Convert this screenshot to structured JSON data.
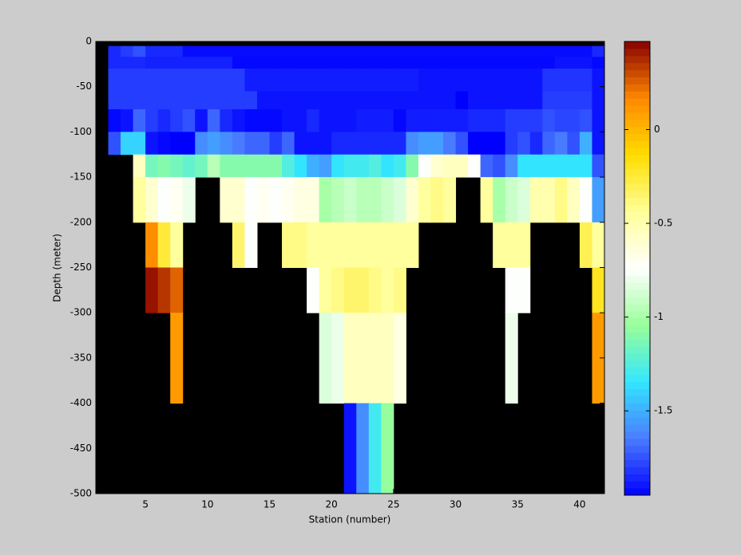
{
  "chart_data": {
    "type": "heatmap",
    "x_label": "Station (number)",
    "y_label": "Depth (meter)",
    "xlim": [
      1,
      42
    ],
    "ylim": [
      -500,
      0
    ],
    "xticks": [
      5,
      10,
      15,
      20,
      25,
      30,
      35,
      40
    ],
    "yticks": [
      0,
      -50,
      -100,
      -150,
      -200,
      -250,
      -300,
      -350,
      -400,
      -450,
      -500
    ],
    "clim": [
      -1.95,
      0.47
    ],
    "cticks": [
      0,
      -0.5,
      -1,
      -1.5
    ],
    "colormap": [
      "#0000ff",
      "#4a7cff",
      "#33e6ff",
      "#99ff99",
      "#ffffff",
      "#ffff99",
      "#ffdd00",
      "#ff8800",
      "#880000"
    ],
    "missing_color": "#000000",
    "x": [
      2,
      3,
      4,
      5,
      6,
      7,
      8,
      9,
      10,
      11,
      12,
      13,
      14,
      15,
      16,
      17,
      18,
      19,
      20,
      21,
      22,
      23,
      24,
      25,
      26,
      27,
      28,
      29,
      30,
      31,
      32,
      33,
      34,
      35,
      36,
      37,
      38,
      39,
      40,
      41,
      42
    ],
    "y": [
      -5,
      -17,
      -30,
      -55,
      -75,
      -100,
      -125,
      -150,
      -200,
      -250,
      -300,
      -400,
      -500
    ],
    "values": [
      [
        -1.85,
        -1.8,
        -1.75,
        -1.85,
        -1.85,
        -1.85,
        -1.92,
        -1.92,
        -1.92,
        -1.92,
        -1.92,
        -1.92,
        -1.92,
        -1.92,
        -1.92,
        -1.92,
        -1.92,
        -1.92,
        -1.92,
        -1.92,
        -1.92,
        -1.92,
        -1.92,
        -1.92,
        -1.92,
        -1.92,
        -1.92,
        -1.92,
        -1.92,
        -1.92,
        -1.92,
        -1.92,
        -1.92,
        -1.92,
        -1.92,
        -1.92,
        -1.92,
        -1.92,
        -1.92,
        -1.85
      ],
      [
        -1.85,
        -1.85,
        -1.85,
        -1.87,
        -1.87,
        -1.87,
        -1.87,
        -1.87,
        -1.87,
        -1.87,
        -1.93,
        -1.93,
        -1.93,
        -1.93,
        -1.93,
        -1.93,
        -1.93,
        -1.93,
        -1.93,
        -1.93,
        -1.93,
        -1.93,
        -1.93,
        -1.93,
        -1.93,
        -1.93,
        -1.93,
        -1.93,
        -1.93,
        -1.93,
        -1.93,
        -1.93,
        -1.93,
        -1.93,
        -1.93,
        -1.93,
        -1.9,
        -1.9,
        -1.9,
        -1.93
      ],
      [
        -1.8,
        -1.8,
        -1.8,
        -1.8,
        -1.8,
        -1.8,
        -1.8,
        -1.8,
        -1.8,
        -1.8,
        -1.8,
        -1.88,
        -1.88,
        -1.88,
        -1.88,
        -1.88,
        -1.88,
        -1.88,
        -1.88,
        -1.88,
        -1.88,
        -1.88,
        -1.88,
        -1.88,
        -1.88,
        -1.9,
        -1.9,
        -1.9,
        -1.9,
        -1.9,
        -1.9,
        -1.9,
        -1.9,
        -1.9,
        -1.9,
        -1.82,
        -1.82,
        -1.82,
        -1.82,
        -1.9
      ],
      [
        -1.8,
        -1.8,
        -1.8,
        -1.8,
        -1.8,
        -1.8,
        -1.8,
        -1.8,
        -1.8,
        -1.8,
        -1.8,
        -1.8,
        -1.9,
        -1.9,
        -1.9,
        -1.9,
        -1.9,
        -1.9,
        -1.9,
        -1.9,
        -1.9,
        -1.9,
        -1.9,
        -1.9,
        -1.9,
        -1.9,
        -1.9,
        -1.9,
        -1.95,
        -1.9,
        -1.9,
        -1.9,
        -1.9,
        -1.9,
        -1.9,
        -1.8,
        -1.8,
        -1.8,
        -1.8,
        -1.9
      ],
      [
        -1.93,
        -1.9,
        -1.7,
        -1.8,
        -1.85,
        -1.8,
        -1.75,
        -1.9,
        -1.7,
        -1.85,
        -1.9,
        -1.93,
        -1.93,
        -1.93,
        -1.9,
        -1.9,
        -1.85,
        -1.9,
        -1.9,
        -1.9,
        -1.88,
        -1.88,
        -1.88,
        -1.93,
        -1.88,
        -1.88,
        -1.88,
        -1.88,
        -1.88,
        -1.85,
        -1.85,
        -1.85,
        -1.8,
        -1.8,
        -1.8,
        -1.75,
        -1.78,
        -1.78,
        -1.75,
        -1.9
      ],
      [
        -1.75,
        -1.4,
        -1.4,
        -1.9,
        -1.93,
        -1.95,
        -1.95,
        -1.6,
        -1.55,
        -1.6,
        -1.65,
        -1.7,
        -1.7,
        -1.8,
        -1.7,
        -1.9,
        -1.9,
        -1.9,
        -1.85,
        -1.85,
        -1.85,
        -1.85,
        -1.85,
        -1.85,
        -1.6,
        -1.55,
        -1.55,
        -1.65,
        -1.75,
        -1.95,
        -1.95,
        -1.95,
        -1.8,
        -1.75,
        -1.85,
        -1.7,
        -1.65,
        -1.75,
        -1.5,
        -1.9
      ],
      [
        null,
        null,
        -0.55,
        -1.15,
        -1.1,
        -1.15,
        -1.2,
        -1.15,
        -0.95,
        -1.1,
        -1.1,
        -1.1,
        -1.1,
        -1.1,
        -1.25,
        -1.35,
        -1.5,
        -1.55,
        -1.35,
        -1.3,
        -1.3,
        -1.25,
        -1.35,
        -1.3,
        -1.1,
        -0.75,
        -0.6,
        -0.55,
        -0.55,
        -0.75,
        -1.7,
        -1.75,
        -1.6,
        -1.35,
        -1.35,
        -1.35,
        -1.35,
        -1.35,
        -1.35,
        -1.75
      ],
      [
        null,
        null,
        -0.45,
        -0.6,
        -0.75,
        -0.7,
        -0.8,
        null,
        null,
        -0.6,
        -0.6,
        -0.75,
        -0.7,
        -0.75,
        -0.7,
        -0.65,
        -0.65,
        -1.0,
        -0.95,
        -0.9,
        -0.95,
        -0.95,
        -0.9,
        -0.85,
        -0.6,
        -0.45,
        -0.4,
        -0.45,
        null,
        null,
        -0.45,
        -1.0,
        -0.9,
        -0.85,
        -0.5,
        -0.5,
        -0.4,
        -0.55,
        -0.75,
        -1.55
      ],
      [
        null,
        null,
        null,
        0.15,
        -0.25,
        -0.45,
        null,
        null,
        null,
        null,
        -0.35,
        -0.75,
        null,
        null,
        -0.4,
        -0.4,
        -0.45,
        -0.45,
        -0.45,
        -0.45,
        -0.45,
        -0.45,
        -0.45,
        -0.45,
        -0.45,
        null,
        null,
        null,
        null,
        null,
        null,
        -0.45,
        -0.45,
        -0.45,
        null,
        null,
        null,
        null,
        -0.3,
        -0.45
      ],
      [
        null,
        null,
        null,
        0.43,
        0.35,
        0.25,
        null,
        null,
        null,
        null,
        null,
        null,
        null,
        null,
        null,
        null,
        -0.75,
        -0.45,
        -0.4,
        -0.35,
        -0.35,
        -0.4,
        -0.45,
        -0.4,
        null,
        null,
        null,
        null,
        null,
        null,
        null,
        null,
        -0.75,
        -0.75,
        null,
        null,
        null,
        null,
        null,
        -0.2
      ],
      [
        null,
        null,
        null,
        null,
        null,
        0.1,
        null,
        null,
        null,
        null,
        null,
        null,
        null,
        null,
        null,
        null,
        null,
        -0.85,
        -0.8,
        -0.55,
        -0.55,
        -0.55,
        -0.55,
        -0.65,
        null,
        null,
        null,
        null,
        null,
        null,
        null,
        null,
        -0.8,
        null,
        null,
        null,
        null,
        null,
        null,
        0.1
      ],
      [
        null,
        null,
        null,
        null,
        null,
        null,
        null,
        null,
        null,
        null,
        null,
        null,
        null,
        null,
        null,
        null,
        null,
        null,
        null,
        -1.9,
        -1.6,
        -1.3,
        -1.05,
        null,
        null,
        null,
        null,
        null,
        null,
        null,
        null,
        null,
        null,
        null,
        null,
        null,
        null,
        null,
        null,
        null
      ]
    ]
  }
}
